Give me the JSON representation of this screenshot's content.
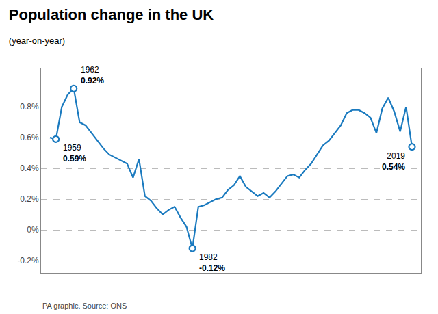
{
  "chart_data": {
    "type": "line",
    "title": "Population change in the UK",
    "subtitle": "(year-on-year)",
    "source": "PA graphic. Source: ONS",
    "color": "#1a7abf",
    "x": [
      1958,
      1959,
      1960,
      1961,
      1962,
      1963,
      1964,
      1965,
      1966,
      1967,
      1968,
      1969,
      1970,
      1971,
      1972,
      1973,
      1974,
      1975,
      1976,
      1977,
      1978,
      1979,
      1980,
      1981,
      1982,
      1983,
      1984,
      1985,
      1986,
      1987,
      1988,
      1989,
      1990,
      1991,
      1992,
      1993,
      1994,
      1995,
      1996,
      1997,
      1998,
      1999,
      2000,
      2001,
      2002,
      2003,
      2004,
      2005,
      2006,
      2007,
      2008,
      2009,
      2010,
      2011,
      2012,
      2013,
      2014,
      2015,
      2016,
      2017,
      2018,
      2019
    ],
    "values": [
      0.6,
      0.59,
      0.8,
      0.88,
      0.92,
      0.7,
      0.68,
      0.63,
      0.58,
      0.53,
      0.49,
      0.47,
      0.45,
      0.43,
      0.34,
      0.46,
      0.22,
      0.19,
      0.14,
      0.1,
      0.13,
      0.15,
      0.08,
      0.02,
      -0.12,
      0.15,
      0.16,
      0.18,
      0.2,
      0.21,
      0.26,
      0.29,
      0.35,
      0.28,
      0.25,
      0.22,
      0.24,
      0.21,
      0.25,
      0.3,
      0.35,
      0.36,
      0.34,
      0.39,
      0.43,
      0.49,
      0.55,
      0.58,
      0.63,
      0.68,
      0.76,
      0.78,
      0.78,
      0.76,
      0.73,
      0.63,
      0.79,
      0.86,
      0.77,
      0.64,
      0.8,
      0.54
    ],
    "annotations": [
      {
        "x": 1959,
        "y": 0.59,
        "text": "1959",
        "label": "0.59%"
      },
      {
        "x": 1962,
        "y": 0.92,
        "text": "1962",
        "label": "0.92%"
      },
      {
        "x": 1982,
        "y": -0.12,
        "text": "1982",
        "label": "-0.12%"
      },
      {
        "x": 2019,
        "y": 0.54,
        "text": "2019",
        "label": "0.54%"
      }
    ],
    "marker": "circle",
    "xlim": [
      1956.5,
      2020.5
    ],
    "ylim": [
      -0.28,
      1.05
    ],
    "yticks": [
      {
        "value": -0.2,
        "label": "-0.2%"
      },
      {
        "value": 0.0,
        "label": "0%"
      },
      {
        "value": 0.2,
        "label": "0.2%"
      },
      {
        "value": 0.4,
        "label": "0.4%"
      },
      {
        "value": 0.6,
        "label": "0.6%"
      },
      {
        "value": 0.8,
        "label": "0.8%"
      }
    ],
    "grid": true,
    "tick_labels": "y"
  }
}
